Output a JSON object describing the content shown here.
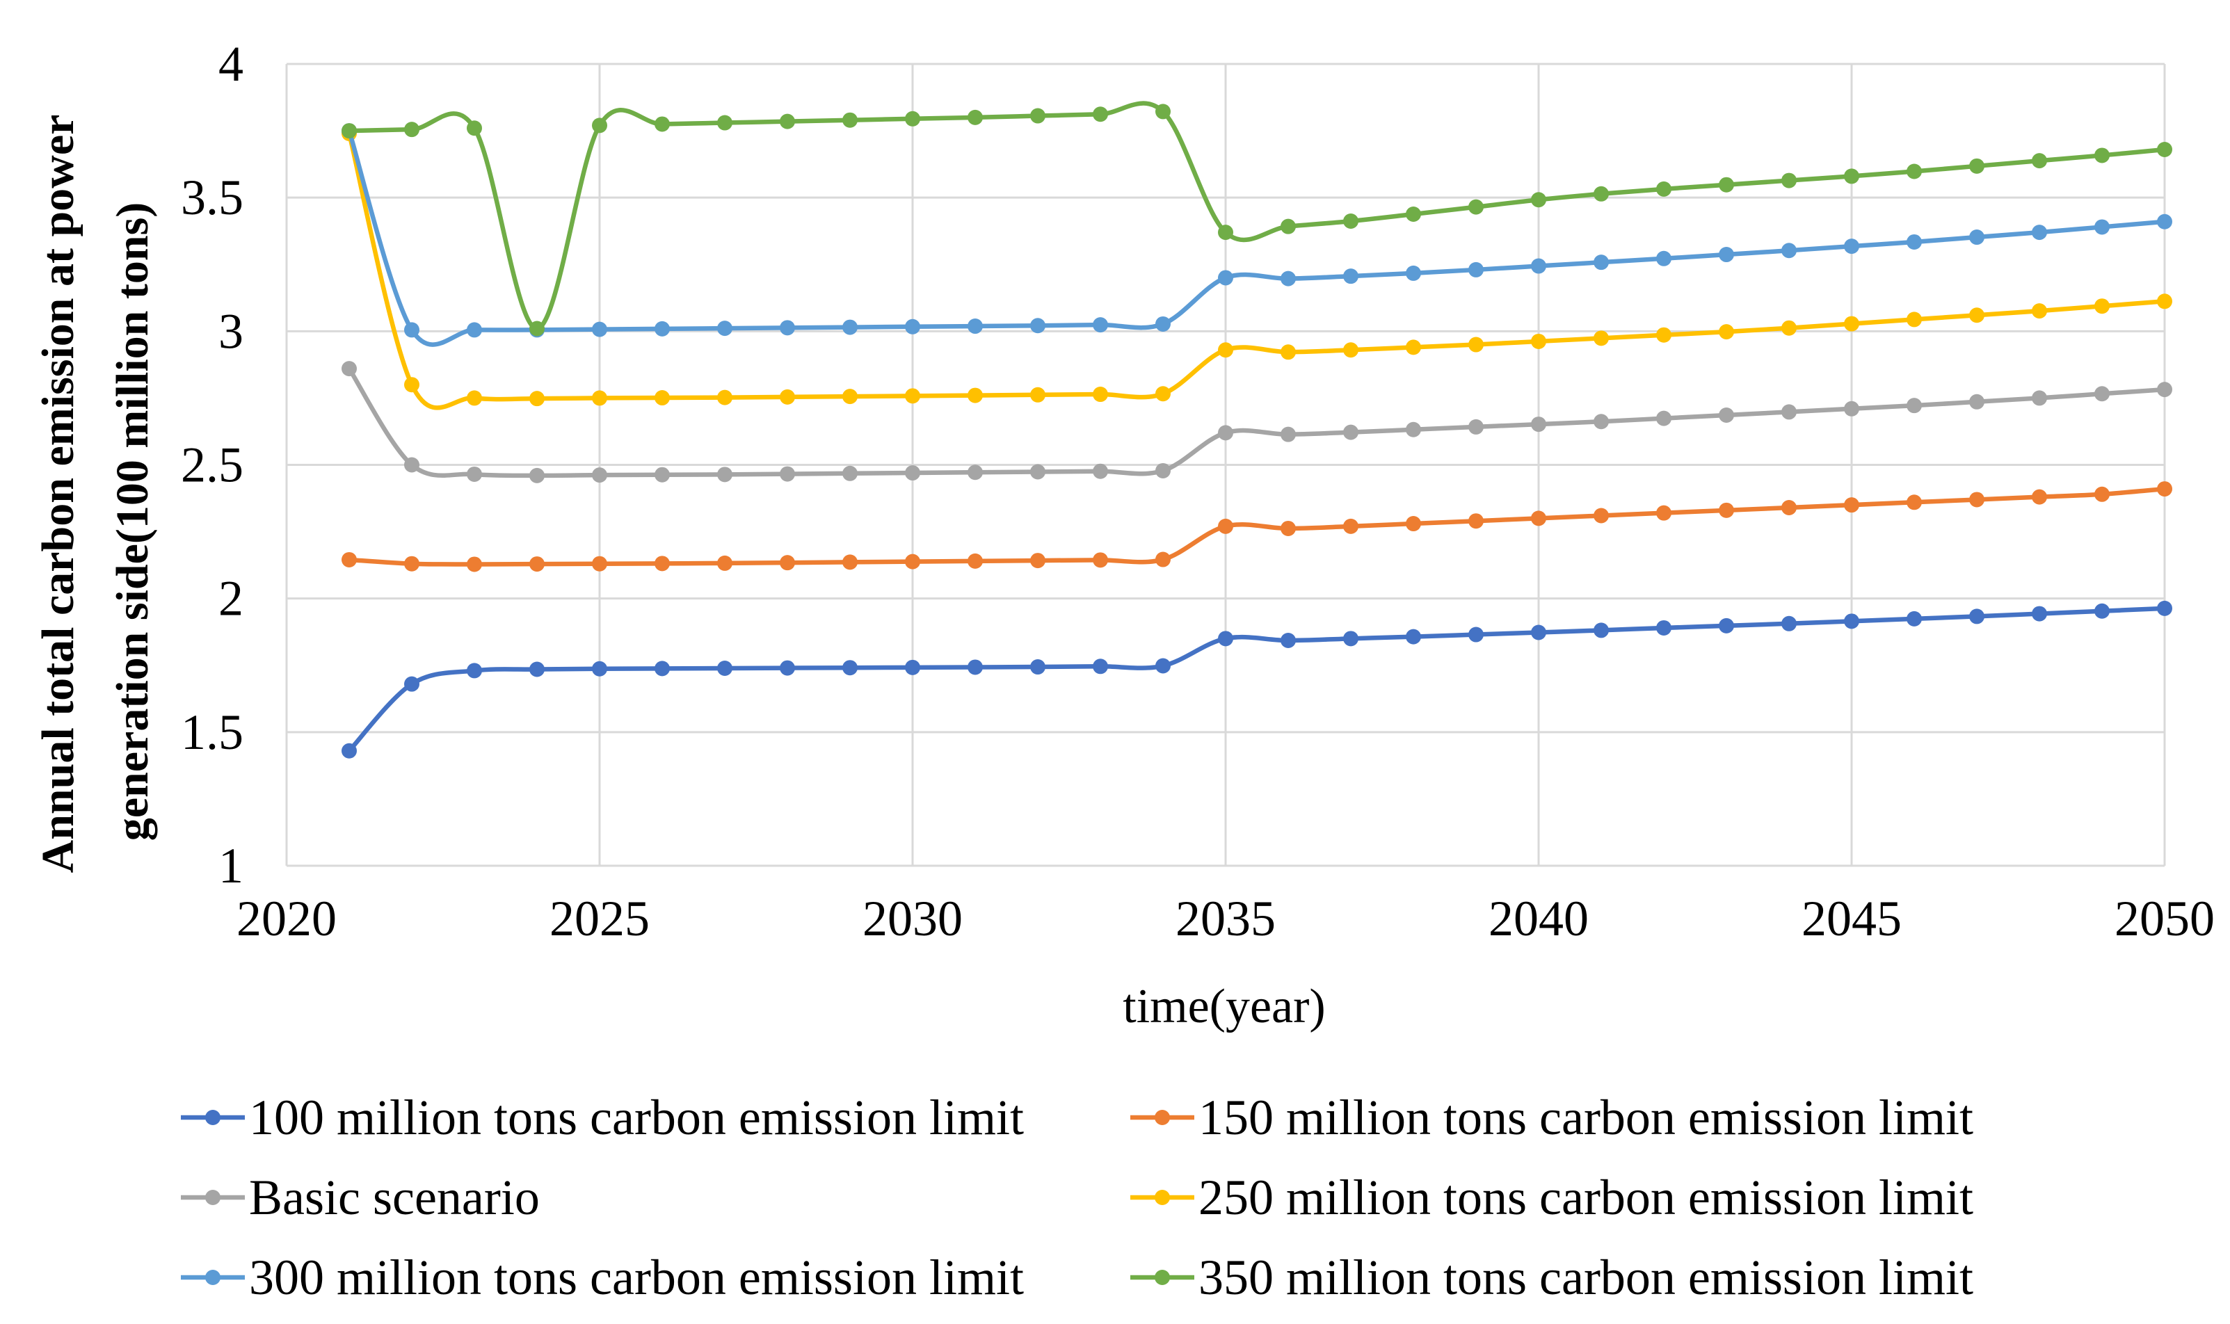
{
  "chart_data": {
    "type": "line",
    "title": "",
    "xlabel": "time(year)",
    "ylabel": [
      "Annual total carbon emission at power",
      "generation side(100 million tons)"
    ],
    "xlim": [
      2020,
      2050
    ],
    "ylim": [
      1,
      4
    ],
    "x_ticks": [
      "2020",
      "2025",
      "2030",
      "2035",
      "2040",
      "2045",
      "2050"
    ],
    "y_ticks": [
      "1",
      "1.5",
      "2",
      "2.5",
      "3",
      "3.5",
      "4"
    ],
    "grid": "vertical and horizontal",
    "legend_position": "bottom",
    "x": [
      2021,
      2022,
      2023,
      2024,
      2025,
      2026,
      2027,
      2028,
      2029,
      2030,
      2031,
      2032,
      2033,
      2034,
      2035,
      2036,
      2037,
      2038,
      2039,
      2040,
      2041,
      2042,
      2043,
      2044,
      2045,
      2046,
      2047,
      2048,
      2049,
      2050
    ],
    "series": [
      {
        "name": "100 million tons carbon emission limit",
        "color": "#4472c4",
        "values": [
          1.43,
          1.68,
          1.73,
          1.735,
          1.737,
          1.738,
          1.739,
          1.74,
          1.741,
          1.742,
          1.743,
          1.744,
          1.746,
          1.748,
          1.85,
          1.843,
          1.85,
          1.857,
          1.865,
          1.873,
          1.881,
          1.89,
          1.898,
          1.906,
          1.915,
          1.924,
          1.933,
          1.943,
          1.953,
          1.963
        ]
      },
      {
        "name": "150 million tons carbon emission limit",
        "color": "#ed7d31",
        "values": [
          2.145,
          2.13,
          2.128,
          2.129,
          2.13,
          2.131,
          2.132,
          2.134,
          2.136,
          2.138,
          2.14,
          2.142,
          2.144,
          2.146,
          2.27,
          2.262,
          2.27,
          2.28,
          2.29,
          2.3,
          2.31,
          2.32,
          2.33,
          2.34,
          2.35,
          2.36,
          2.37,
          2.38,
          2.39,
          2.41
        ]
      },
      {
        "name": "Basic scenario",
        "color": "#a5a5a5",
        "values": [
          2.86,
          2.5,
          2.465,
          2.46,
          2.462,
          2.463,
          2.464,
          2.466,
          2.468,
          2.47,
          2.472,
          2.474,
          2.476,
          2.478,
          2.62,
          2.614,
          2.622,
          2.632,
          2.642,
          2.652,
          2.662,
          2.674,
          2.686,
          2.698,
          2.71,
          2.722,
          2.736,
          2.75,
          2.766,
          2.782
        ]
      },
      {
        "name": "250 million tons carbon emission limit",
        "color": "#ffc000",
        "values": [
          3.74,
          2.8,
          2.75,
          2.748,
          2.75,
          2.751,
          2.752,
          2.754,
          2.756,
          2.758,
          2.76,
          2.762,
          2.764,
          2.766,
          2.93,
          2.922,
          2.93,
          2.94,
          2.95,
          2.962,
          2.974,
          2.986,
          2.998,
          3.012,
          3.028,
          3.044,
          3.06,
          3.076,
          3.094,
          3.112
        ]
      },
      {
        "name": "300 million tons carbon emission limit",
        "color": "#5b9bd5",
        "values": [
          3.75,
          3.005,
          3.005,
          3.005,
          3.007,
          3.009,
          3.011,
          3.013,
          3.015,
          3.017,
          3.019,
          3.021,
          3.024,
          3.027,
          3.2,
          3.197,
          3.206,
          3.217,
          3.23,
          3.244,
          3.258,
          3.272,
          3.287,
          3.302,
          3.318,
          3.334,
          3.352,
          3.37,
          3.39,
          3.41
        ]
      },
      {
        "name": "350 million tons carbon emission limit",
        "color": "#70ad47",
        "values": [
          3.75,
          3.755,
          3.76,
          3.01,
          3.77,
          3.775,
          3.78,
          3.785,
          3.79,
          3.795,
          3.8,
          3.806,
          3.812,
          3.822,
          3.37,
          3.392,
          3.412,
          3.438,
          3.465,
          3.492,
          3.514,
          3.532,
          3.548,
          3.564,
          3.58,
          3.598,
          3.618,
          3.638,
          3.658,
          3.68
        ]
      }
    ]
  }
}
